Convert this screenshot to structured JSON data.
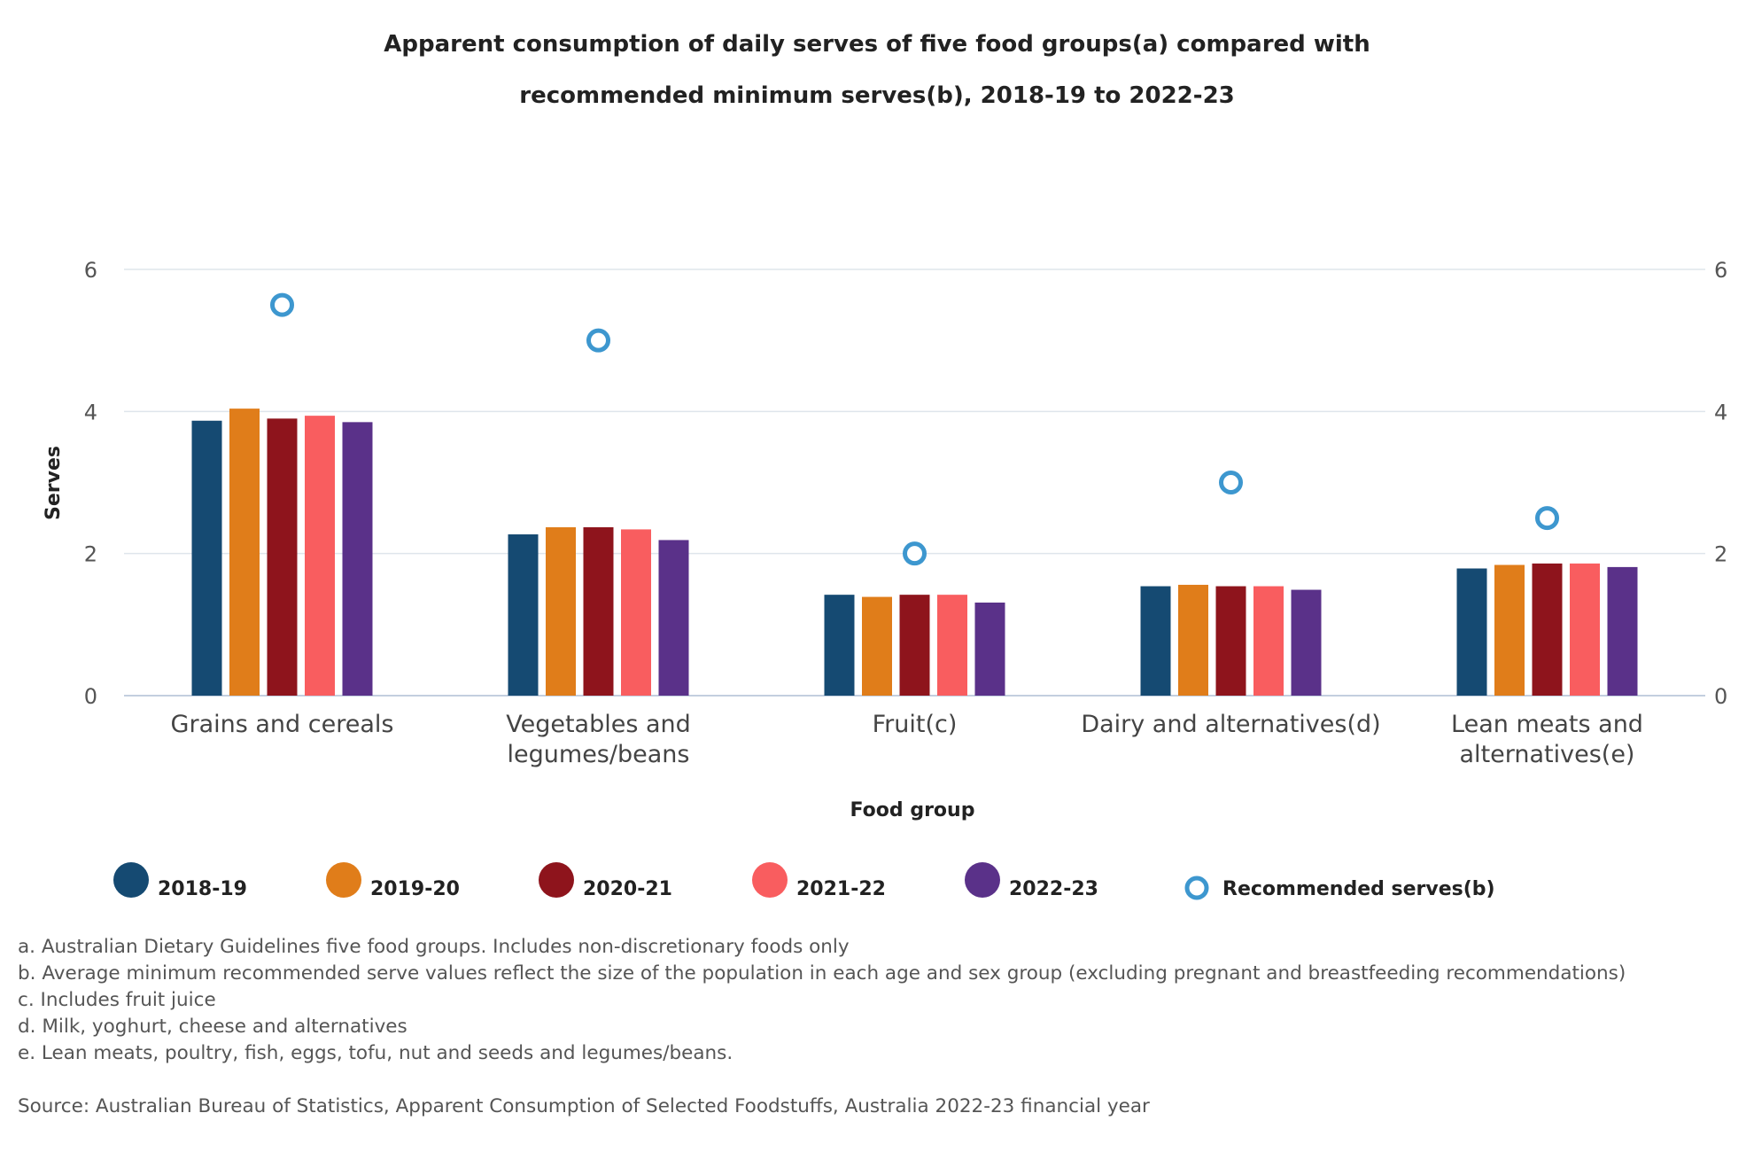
{
  "chart_data": {
    "type": "bar",
    "title_lines": [
      "Apparent consumption of daily serves of five food groups(a) compared with",
      "recommended minimum serves(b), 2018-19 to 2022-23"
    ],
    "xlabel": "Food group",
    "ylabel": "Serves",
    "ylim": [
      0,
      6
    ],
    "yticks": [
      "0",
      "2",
      "4",
      "6"
    ],
    "categories": [
      [
        "Grains and cereals"
      ],
      [
        "Vegetables and",
        "legumes/beans"
      ],
      [
        "Fruit(c)"
      ],
      [
        "Dairy and alternatives(d)"
      ],
      [
        "Lean meats and",
        "alternatives(e)"
      ]
    ],
    "series": [
      {
        "name": "2018-19",
        "color": "#154a72",
        "values": [
          3.87,
          2.27,
          1.42,
          1.54,
          1.79
        ]
      },
      {
        "name": "2019-20",
        "color": "#e07d1a",
        "values": [
          4.04,
          2.37,
          1.39,
          1.56,
          1.84
        ]
      },
      {
        "name": "2020-21",
        "color": "#8e141c",
        "values": [
          3.9,
          2.37,
          1.42,
          1.54,
          1.86
        ]
      },
      {
        "name": "2021-22",
        "color": "#f95d5f",
        "values": [
          3.94,
          2.34,
          1.42,
          1.54,
          1.86
        ]
      },
      {
        "name": "2022-23",
        "color": "#5a3189",
        "values": [
          3.85,
          2.19,
          1.31,
          1.49,
          1.81
        ]
      }
    ],
    "recommended": {
      "name": "Recommended serves(b)",
      "color": "#3d97cf",
      "values": [
        5.5,
        5.0,
        2.0,
        3.0,
        2.5
      ]
    },
    "legend_position": "bottom",
    "grid": true
  },
  "notes": [
    "a. Australian Dietary Guidelines five food groups. Includes non-discretionary foods only",
    "b. Average minimum recommended serve values reflect the size of the population in each age and sex group (excluding pregnant and breastfeeding recommendations)",
    "c. Includes fruit juice",
    "d. Milk, yoghurt, cheese and alternatives",
    "e. Lean meats, poultry, fish, eggs, tofu, nut and seeds and legumes/beans."
  ],
  "source": "Source: Australian Bureau of Statistics, Apparent Consumption of Selected Foodstuffs, Australia 2022-23 financial year"
}
